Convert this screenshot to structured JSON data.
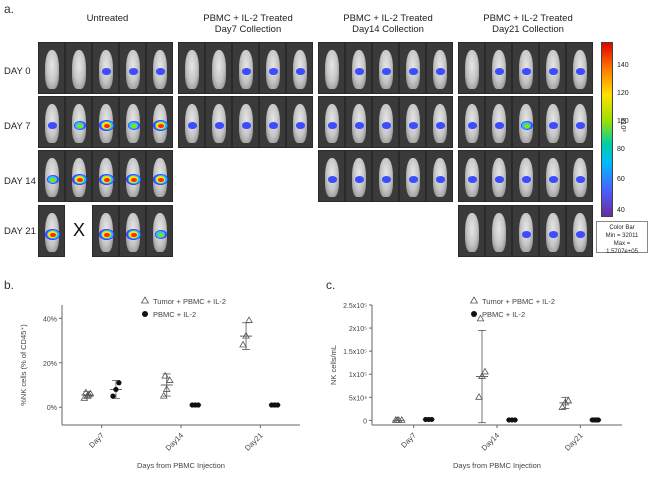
{
  "panel_a": {
    "letter": "a.",
    "groups": [
      {
        "title_line1": "Untreated",
        "title_line2": ""
      },
      {
        "title_line1": "PBMC + IL-2 Treated",
        "title_line2": "Day7 Collection"
      },
      {
        "title_line1": "PBMC + IL-2 Treated",
        "title_line2": "Day14 Collection"
      },
      {
        "title_line1": "PBMC + IL-2 Treated",
        "title_line2": "Day21 Collection"
      }
    ],
    "rows": [
      "DAY 0",
      "DAY 7",
      "DAY 14",
      "DAY 21"
    ],
    "missing_mark": "X",
    "colorbar": {
      "ticks": [
        "140",
        "120",
        "100",
        "80",
        "60",
        "40"
      ],
      "unit": "x10³",
      "box_line1": "Color Bar",
      "box_line2": "Min = 32011",
      "box_line3": "Max = 1.5707e+05",
      "colors": [
        "#e00000",
        "#ff7a00",
        "#ffe000",
        "#9be000",
        "#00d0a0",
        "#00b8ff",
        "#4a60ff",
        "#6a2ca0"
      ]
    }
  },
  "panel_b": {
    "letter": "b."
  },
  "panel_c": {
    "letter": "c."
  },
  "chart_data": [
    {
      "type": "scatter",
      "title": "",
      "xlabel": "Days from PBMC Injection",
      "ylabel": "%NK cells (% of CD45⁺)",
      "categories": [
        "Day7",
        "Day14",
        "Day21"
      ],
      "yticks": [
        "0%",
        "20%",
        "40%"
      ],
      "ylim": [
        -8,
        46
      ],
      "legend": "top-right",
      "series": [
        {
          "name": "Tumor + PBMC + IL-2",
          "marker": "triangle-open",
          "points": [
            [
              0,
              4
            ],
            [
              0,
              5
            ],
            [
              0,
              6
            ],
            [
              0,
              6.5
            ],
            [
              0,
              5.5
            ],
            [
              1,
              5
            ],
            [
              1,
              8
            ],
            [
              1,
              12
            ],
            [
              1,
              14
            ],
            [
              2,
              28
            ],
            [
              2,
              32
            ],
            [
              2,
              39
            ]
          ],
          "means": [
            5.5,
            10,
            32
          ],
          "errors": [
            1.5,
            5,
            6
          ]
        },
        {
          "name": "PBMC + IL-2",
          "marker": "circle-filled",
          "points": [
            [
              0,
              5
            ],
            [
              0,
              8
            ],
            [
              0,
              11
            ],
            [
              1,
              1
            ],
            [
              1,
              1
            ],
            [
              1,
              1
            ],
            [
              2,
              1
            ],
            [
              2,
              1
            ],
            [
              2,
              1
            ]
          ],
          "means": [
            8,
            1,
            1
          ],
          "errors": [
            4,
            0.3,
            0.3
          ]
        }
      ]
    },
    {
      "type": "scatter",
      "title": "",
      "xlabel": "Days from PBMC Injection",
      "ylabel": "NK cells/mL",
      "categories": [
        "Day7",
        "Day14",
        "Day21"
      ],
      "yticks": [
        "0",
        "5x10⁴",
        "1x10⁵",
        "1.5x10⁵",
        "2x10⁵",
        "2.5x10⁵"
      ],
      "ylim": [
        -10000,
        250000
      ],
      "legend": "top-right",
      "series": [
        {
          "name": "Tumor + PBMC + IL-2",
          "marker": "triangle-open",
          "points": [
            [
              0,
              0
            ],
            [
              0,
              0
            ],
            [
              0,
              0
            ],
            [
              0,
              0
            ],
            [
              1,
              50000
            ],
            [
              1,
              95000
            ],
            [
              1,
              105000
            ],
            [
              1,
              220000
            ],
            [
              2,
              28000
            ],
            [
              2,
              38000
            ],
            [
              2,
              42000
            ]
          ],
          "means": [
            0,
            95000,
            38000
          ],
          "errors": [
            0,
            100000,
            12000
          ]
        },
        {
          "name": "PBMC + IL-2",
          "marker": "circle-filled",
          "points": [
            [
              0,
              2000
            ],
            [
              0,
              2000
            ],
            [
              0,
              2000
            ],
            [
              1,
              1000
            ],
            [
              1,
              1000
            ],
            [
              1,
              1000
            ],
            [
              2,
              1000
            ],
            [
              2,
              1000
            ],
            [
              2,
              1000
            ],
            [
              2,
              1000
            ],
            [
              2,
              1000
            ]
          ],
          "means": [
            2000,
            1000,
            1000
          ],
          "errors": [
            0,
            0,
            0
          ]
        }
      ]
    }
  ]
}
